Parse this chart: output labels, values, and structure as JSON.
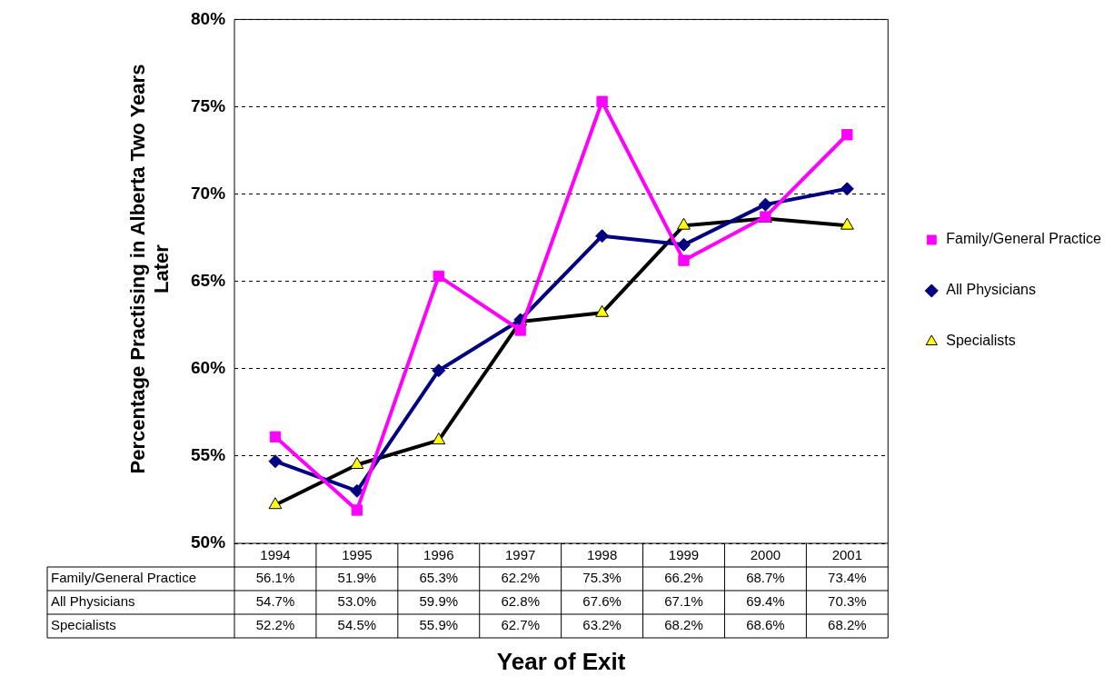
{
  "chart_data": {
    "type": "line",
    "xlabel": "Year of Exit",
    "ylabel": "Percentage Practising in Alberta Two Years Later",
    "categories": [
      "1994",
      "1995",
      "1996",
      "1997",
      "1998",
      "1999",
      "2000",
      "2001"
    ],
    "ylim": [
      50,
      80
    ],
    "yticks": [
      {
        "value": 50,
        "label": "50%"
      },
      {
        "value": 55,
        "label": "55%"
      },
      {
        "value": 60,
        "label": "60%"
      },
      {
        "value": 65,
        "label": "65%"
      },
      {
        "value": 70,
        "label": "70%"
      },
      {
        "value": 75,
        "label": "75%"
      },
      {
        "value": 80,
        "label": "80%"
      }
    ],
    "grid": "y",
    "legend": "right",
    "line_style": "solid",
    "series": [
      {
        "name": "Family/General Practice",
        "color": "#ff00ff",
        "marker": "square",
        "values": [
          56.1,
          51.9,
          65.3,
          62.2,
          75.3,
          66.2,
          68.7,
          73.4
        ],
        "value_labels": [
          "56.1%",
          "51.9%",
          "65.3%",
          "62.2%",
          "75.3%",
          "66.2%",
          "68.7%",
          "73.4%"
        ]
      },
      {
        "name": "All Physicians",
        "color": "#000080",
        "marker": "diamond",
        "values": [
          54.7,
          53.0,
          59.9,
          62.8,
          67.6,
          67.1,
          69.4,
          70.3
        ],
        "value_labels": [
          "54.7%",
          "53.0%",
          "59.9%",
          "62.8%",
          "67.6%",
          "67.1%",
          "69.4%",
          "70.3%"
        ]
      },
      {
        "name": "Specialists",
        "color": "#000000",
        "marker": "triangle",
        "colors": [
          "#ffff00",
          "#ffff00",
          "#ffff00",
          "#ffff00",
          "#ffff00",
          "#ffff00",
          "#ffff00",
          "#ffff00"
        ],
        "values": [
          52.2,
          54.5,
          55.9,
          62.7,
          63.2,
          68.2,
          68.6,
          68.2
        ],
        "value_labels": [
          "52.2%",
          "54.5%",
          "55.9%",
          "62.7%",
          "63.2%",
          "68.2%",
          "68.6%",
          "68.2%"
        ]
      }
    ]
  }
}
